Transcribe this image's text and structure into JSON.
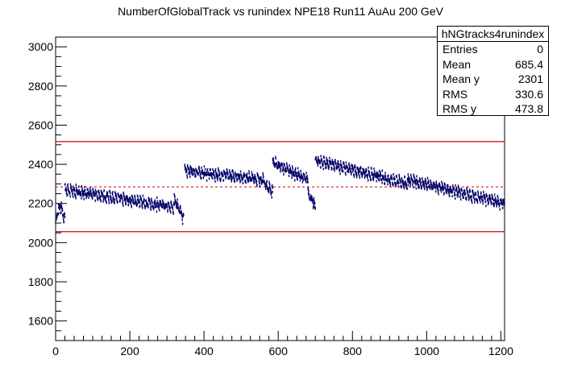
{
  "chart_data": {
    "type": "scatter",
    "title": "NumberOfGlobalTrack vs runindex NPE18 Run11 AuAu 200 GeV",
    "xlabel": "",
    "ylabel": "",
    "xlim": [
      0,
      1210
    ],
    "ylim": [
      1500,
      3050
    ],
    "x_ticks": [
      0,
      200,
      400,
      600,
      800,
      1000,
      1200
    ],
    "y_ticks": [
      1600,
      1800,
      2000,
      2200,
      2400,
      2600,
      2800,
      3000
    ],
    "mean_line": 2285,
    "upper_limit": 2516,
    "lower_limit": 2056,
    "segments": [
      {
        "x_start": 0,
        "x_end": 25,
        "values": [
          2100,
          2160,
          2190,
          2150,
          2120
        ]
      },
      {
        "x_start": 25,
        "x_end": 320,
        "values": [
          2270,
          2180
        ]
      },
      {
        "x_start": 320,
        "x_end": 345,
        "values": [
          2230,
          2120
        ]
      },
      {
        "x_start": 348,
        "x_end": 560,
        "values": [
          2370,
          2350,
          2340,
          2320
        ]
      },
      {
        "x_start": 560,
        "x_end": 585,
        "values": [
          2310,
          2260
        ]
      },
      {
        "x_start": 585,
        "x_end": 680,
        "values": [
          2410,
          2320
        ]
      },
      {
        "x_start": 680,
        "x_end": 700,
        "values": [
          2260,
          2180
        ]
      },
      {
        "x_start": 700,
        "x_end": 950,
        "values": [
          2420,
          2300
        ]
      },
      {
        "x_start": 950,
        "x_end": 1210,
        "values": [
          2320,
          2200
        ]
      }
    ],
    "series": [
      {
        "color": "#000066"
      }
    ],
    "limit_color": "#cc0000",
    "grid": false
  },
  "stats": {
    "name": "hNGtracks4runindex",
    "rows": [
      {
        "label": "Entries",
        "value": "0"
      },
      {
        "label": "Mean",
        "value": "685.4"
      },
      {
        "label": "Mean y",
        "value": "2301"
      },
      {
        "label": "RMS",
        "value": "330.6"
      },
      {
        "label": "RMS y",
        "value": "473.8"
      }
    ]
  }
}
